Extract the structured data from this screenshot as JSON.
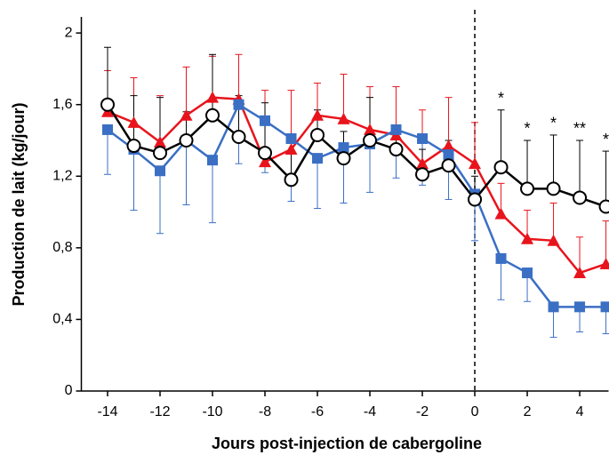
{
  "chart_data": {
    "type": "line",
    "x_label": "Jours post-injection de cabergoline",
    "y_label": "Production de lait (kg/jour)",
    "x": [
      -14,
      -13,
      -12,
      -11,
      -10,
      -9,
      -8,
      -7,
      -6,
      -5,
      -4,
      -3,
      -2,
      -1,
      0,
      1,
      2,
      3,
      4,
      5
    ],
    "series": [
      {
        "color": "#e8141c",
        "marker": "triangle",
        "error_direction": "up",
        "values": [
          1.56,
          1.5,
          1.39,
          1.54,
          1.64,
          1.63,
          1.28,
          1.35,
          1.54,
          1.52,
          1.46,
          1.43,
          1.27,
          1.37,
          1.27,
          0.99,
          0.85,
          0.84,
          0.66,
          0.71
        ],
        "errors": [
          0.23,
          0.25,
          0.26,
          0.27,
          0.23,
          0.25,
          0.4,
          0.33,
          0.18,
          0.25,
          0.24,
          0.27,
          0.3,
          0.27,
          0.23,
          0.17,
          0.16,
          0.21,
          0.2,
          0.24
        ]
      },
      {
        "color": "#3a6fc4",
        "marker": "square",
        "error_direction": "down",
        "values": [
          1.46,
          1.35,
          1.23,
          1.4,
          1.29,
          1.6,
          1.51,
          1.41,
          1.3,
          1.36,
          1.38,
          1.46,
          1.41,
          1.32,
          1.1,
          0.74,
          0.66,
          0.47,
          0.47,
          0.47
        ],
        "errors": [
          0.25,
          0.34,
          0.35,
          0.36,
          0.35,
          0.33,
          0.29,
          0.35,
          0.28,
          0.31,
          0.27,
          0.27,
          0.26,
          0.25,
          0.26,
          0.23,
          0.16,
          0.17,
          0.14,
          0.15
        ]
      },
      {
        "color": "#000000",
        "marker": "circle",
        "error_direction": "up",
        "values": [
          1.6,
          1.37,
          1.33,
          1.4,
          1.54,
          1.42,
          1.33,
          1.18,
          1.43,
          1.3,
          1.4,
          1.35,
          1.21,
          1.26,
          1.07,
          1.25,
          1.13,
          1.13,
          1.08,
          1.03
        ],
        "errors": [
          0.32,
          0.28,
          0.31,
          0.16,
          0.34,
          0.23,
          0.28,
          0.25,
          0.14,
          0.15,
          0.24,
          0.12,
          0.14,
          0.14,
          0.13,
          0.32,
          0.27,
          0.3,
          0.32,
          0.31
        ]
      }
    ],
    "annotations": [
      {
        "x": 1,
        "text": "*"
      },
      {
        "x": 2,
        "text": "*"
      },
      {
        "x": 3,
        "text": "*"
      },
      {
        "x": 4,
        "text": "**"
      },
      {
        "x": 5,
        "text": "*"
      }
    ],
    "vline": 0,
    "xlim": [
      -15,
      5.1
    ],
    "ylim": [
      0,
      2.09
    ],
    "xticks": [
      -14,
      -12,
      -10,
      -8,
      -6,
      -4,
      -2,
      0,
      2,
      4
    ],
    "yticks": [
      0,
      {
        "value": 0.4,
        "label": "0,4"
      },
      {
        "value": 0.8,
        "label": "0,8"
      },
      {
        "value": 1.2,
        "label": "1,2"
      },
      {
        "value": 1.6,
        "label": "1,6"
      },
      2
    ]
  }
}
